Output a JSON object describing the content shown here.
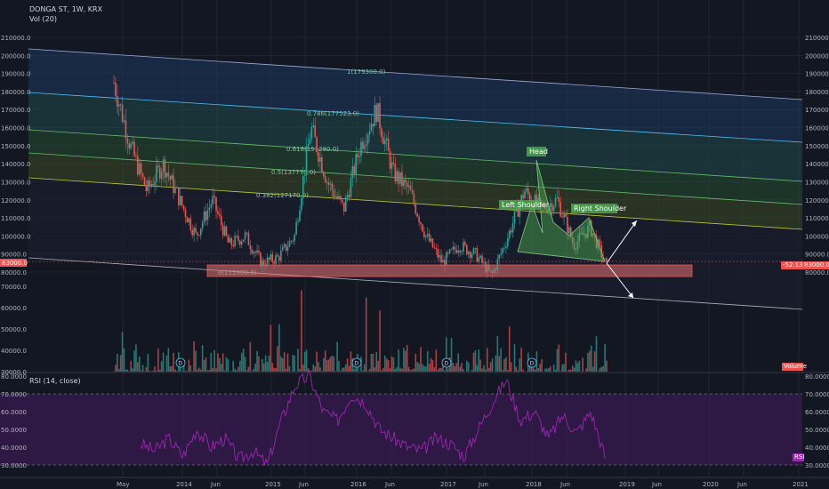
{
  "header": {
    "symbol": "DONGA ST, 1W, KRX",
    "volume_study": "Vol (20)",
    "rsi_study": "RSI (14, close)"
  },
  "colors": {
    "background": "#131722",
    "grid": "#2a2e39",
    "up_candle": "#26a69a",
    "down_candle": "#ef5350",
    "rsi_line": "#9c27b0",
    "rsi_band": "#3a1a52",
    "pattern_fill": "#4caf50",
    "support_zone": "#e57373"
  },
  "chart_data": {
    "type": "candlestick",
    "price_axis": {
      "range": [
        75000,
        215000
      ],
      "ticks": [
        "80000.0",
        "90000.0",
        "100000.0",
        "110000.0",
        "120000.0",
        "130000.0",
        "140000.0",
        "150000.0",
        "160000.0",
        "170000.0",
        "180000.0",
        "190000.0",
        "200000.0",
        "210000.0"
      ]
    },
    "volume_axis": {
      "ticks": [
        "30000.0",
        "40000.0",
        "50000.0",
        "60000.0",
        "70000.0"
      ]
    },
    "rsi_axis": {
      "range": [
        25,
        82
      ],
      "ticks": [
        "30.0000",
        "40.0000",
        "50.0000",
        "60.0000",
        "70.0000",
        "80.0000"
      ],
      "bands": [
        30,
        70
      ]
    },
    "time_axis": {
      "ticks": [
        "May",
        "2014",
        "Jun",
        "2015",
        "Jun",
        "2016",
        "Jun",
        "2017",
        "Jun",
        "2018",
        "Jun",
        "2019",
        "Jun",
        "2020",
        "Jun",
        "2021"
      ]
    },
    "price_series_approx": [
      [
        "2013-05",
        185000
      ],
      [
        "2013-06",
        150000
      ],
      [
        "2013-08",
        125000
      ],
      [
        "2013-09",
        140000
      ],
      [
        "2013-11",
        120000
      ],
      [
        "2014-01",
        100000
      ],
      [
        "2014-03",
        120000
      ],
      [
        "2014-05",
        95000
      ],
      [
        "2014-08",
        100000
      ],
      [
        "2014-11",
        85000
      ],
      [
        "2015-02",
        88000
      ],
      [
        "2015-04",
        100000
      ],
      [
        "2015-05",
        160000
      ],
      [
        "2015-07",
        130000
      ],
      [
        "2015-09",
        115000
      ],
      [
        "2015-12",
        150000
      ],
      [
        "2016-02",
        170000
      ],
      [
        "2016-04",
        135000
      ],
      [
        "2016-07",
        125000
      ],
      [
        "2016-10",
        100000
      ],
      [
        "2016-12",
        85000
      ],
      [
        "2017-03",
        95000
      ],
      [
        "2017-06",
        90000
      ],
      [
        "2017-08",
        78000
      ],
      [
        "2017-10",
        100000
      ],
      [
        "2018-01",
        125000
      ],
      [
        "2018-03",
        115000
      ],
      [
        "2018-05",
        120000
      ],
      [
        "2018-07",
        95000
      ],
      [
        "2018-09",
        105000
      ],
      [
        "2018-11",
        83000
      ]
    ],
    "annotations": {
      "fib_levels": [
        {
          "ratio": "1(179300.0)"
        },
        {
          "ratio": "0.786(177523.0)"
        },
        {
          "ratio": "0.618(151280.0)"
        },
        {
          "ratio": "0.5(137770.0)"
        },
        {
          "ratio": "0.382(127170.0)"
        },
        {
          "ratio": "0(112000.0)"
        }
      ],
      "pattern_labels": [
        "Head",
        "Left Shoulder",
        "Right Shoulder"
      ],
      "support_zone": [
        78000,
        88000
      ]
    },
    "price_badges": {
      "left": "83000.0",
      "right_change": "-52.13%",
      "right_last": "83000.0"
    },
    "volume_badge": "Volume",
    "rsi_badge": "RSI",
    "dividend_marker": "D"
  }
}
